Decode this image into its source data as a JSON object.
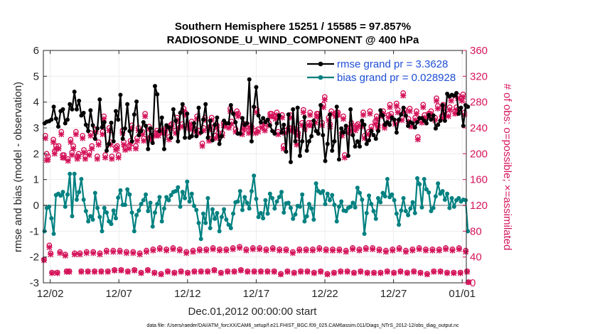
{
  "chart_data": {
    "type": "line",
    "title": "Southern Hemisphere 15251 / 15585 = 97.857%",
    "subtitle": "RADIOSONDE_U_WIND_COMPONENT @ 400 hPa",
    "xlabel": "Dec.01,2012 00:00:00 start",
    "ylabel": "rmse and bias (model - observation)",
    "y2label": "# of obs: o=possible; ×=assimilated",
    "xlim": [
      0.5,
      31.3
    ],
    "ylim": [
      -3,
      6
    ],
    "y2lim": [
      0,
      360
    ],
    "xticks": [
      1,
      6,
      11,
      16,
      21,
      26,
      31
    ],
    "xticklabels": [
      "12/02",
      "12/07",
      "12/12",
      "12/17",
      "12/22",
      "12/27",
      "01/01"
    ],
    "yticks": [
      -3,
      -2,
      -1,
      0,
      1,
      2,
      3,
      4,
      5,
      6
    ],
    "y2ticks": [
      0,
      40,
      80,
      120,
      160,
      200,
      240,
      280,
      320,
      360
    ],
    "grid": true,
    "legend_position": "top-right",
    "colors": {
      "rmse": "#000000",
      "bias": "#008080",
      "obs": "#d4145a",
      "zero": "#b3b3b3",
      "legend_text": "#1f4fd6",
      "grid": "#ececec"
    },
    "series": [
      {
        "name": "rmse grand pr = 3.3628",
        "axis": "left",
        "values": [
          3.18,
          3.24,
          3.26,
          3.32,
          3.82,
          3.36,
          3.05,
          3.65,
          3.72,
          3.18,
          3.32,
          3.92,
          3.72,
          4.4,
          3.72,
          4.05,
          3.48,
          3.58,
          3.12,
          2.88,
          3.68,
          3.1,
          2.58,
          2.98,
          4.1,
          3.02,
          3.22,
          2.12,
          2.38,
          3.2,
          2.48,
          3.65,
          3.32,
          4.28,
          2.58,
          2.98,
          3.92,
          2.88,
          2.48,
          3.52,
          4.02,
          2.72,
          2.88,
          3.22,
          3.08,
          2.18,
          2.98,
          2.42,
          4.62,
          4.3,
          2.88,
          3.4,
          2.18,
          3.1,
          3.02,
          2.62,
          3.72,
          3.28,
          2.48,
          3.58,
          3.92,
          2.62,
          3.55,
          2.62,
          2.68,
          3.18,
          2.68,
          3.78,
          2.82,
          3.32,
          3.92,
          2.62,
          3.28,
          2.52,
          3.12,
          3.4,
          2.38,
          2.68,
          3.28,
          3.18,
          3.18,
          3.88,
          3.55,
          3.22,
          2.78,
          2.78,
          3.38,
          3.12,
          3.18,
          4.88,
          2.48,
          3.82,
          4.58,
          3.48,
          3.22,
          3.38,
          3.22,
          3.32,
          3.1,
          2.88,
          2.78,
          3.18,
          3.48,
          2.82,
          3.12,
          2.08,
          3.52,
          1.68,
          3.72,
          2.48,
          3.78,
          1.92,
          2.48,
          3.42,
          2.12,
          2.48,
          2.68,
          3.28,
          2.88,
          2.78,
          3.88,
          2.72,
          1.72,
          2.38,
          3.52,
          2.12,
          2.48,
          3.82,
          1.78,
          2.98,
          2.82,
          3.08,
          1.92,
          3.72,
          2.72,
          2.28,
          2.48,
          2.28,
          3.28,
          3.12,
          2.38,
          2.52,
          2.88,
          2.72,
          2.58,
          2.88,
          3.68,
          3.48,
          3.12,
          3.22,
          3.12,
          3.4,
          3.32,
          2.82,
          3.32,
          3.52,
          3.78,
          3.48,
          3.08,
          3.22,
          3.18,
          3.02,
          3.22,
          3.38,
          3.38,
          3.28,
          3.18,
          3.5,
          3.32,
          3.48,
          2.98,
          3.12,
          3.28,
          3.88,
          3.28,
          4.32,
          4.22,
          4.28,
          4.25,
          4.35,
          3.55,
          3.78,
          3.08,
          3.88,
          3.82
        ]
      },
      {
        "name": "bias grand pr = 0.028928",
        "axis": "left",
        "values": [
          -1.0,
          -0.1,
          -0.05,
          -0.5,
          -1.1,
          0.4,
          0.45,
          0.38,
          0.52,
          -0.05,
          0.42,
          1.22,
          -0.42,
          1.22,
          0.22,
          0.52,
          1.02,
          0.22,
          -0.22,
          -0.62,
          -0.42,
          -0.55,
          0.48,
          -0.1,
          -0.45,
          -1.0,
          -0.1,
          -0.28,
          -0.62,
          -0.72,
          -0.2,
          -0.5,
          0.3,
          0.58,
          0.02,
          0.02,
          0.62,
          0.42,
          -0.28,
          -1.0,
          -0.38,
          -0.2,
          0.05,
          0.2,
          0.42,
          -0.22,
          0.1,
          -0.82,
          -0.28,
          0.05,
          0.32,
          -0.62,
          -0.12,
          0.32,
          0.2,
          0.4,
          0.52,
          0.55,
          0.7,
          -0.05,
          0.52,
          0.28,
          0.92,
          0.15,
          0.45,
          -0.02,
          -0.18,
          -0.68,
          -1.3,
          -0.32,
          -0.68,
          0.28,
          -0.88,
          -0.15,
          -0.52,
          -0.3,
          -1.0,
          -0.45,
          -0.15,
          -0.55,
          -0.75,
          -0.88,
          -0.32,
          0.12,
          0.15,
          0.55,
          -0.18,
          0.32,
          0.1,
          -0.12,
          0.55,
          1.15,
          0.25,
          -0.45,
          -0.3,
          -0.5,
          0.2,
          -0.32,
          0.45,
          0.28,
          -0.12,
          0.15,
          0.32,
          0.52,
          -0.28,
          0.08,
          0.1,
          -0.1,
          -0.52,
          -0.35,
          -0.02,
          -0.05,
          0.42,
          -0.62,
          -0.42,
          0.05,
          -0.12,
          -0.55,
          0.85,
          0.55,
          0.48,
          0.55,
          0.05,
          0.45,
          0.2,
          0.4,
          0.02,
          -0.62,
          -0.05,
          0.15,
          -0.2,
          -0.22,
          -0.1,
          -0.05,
          0.1,
          -0.08,
          0.68,
          0.48,
          0.22,
          -1.1,
          -0.3,
          0.38,
          0.05,
          -0.22,
          -0.52,
          0.28,
          0.12,
          0.48,
          0.35,
          1.02,
          0.32,
          0.42,
          0.2,
          -0.32,
          -0.75,
          -0.2,
          0.28,
          -0.22,
          -0.38,
          -0.12,
          0.12,
          -0.3,
          1.05,
          0.82,
          -0.08,
          1.02,
          0.62,
          0.5,
          -0.22,
          -0.1,
          0.35,
          0.85,
          0.45,
          0.55,
          0.22,
          0.45,
          -0.1,
          0.28,
          -0.05,
          0.2,
          0.28,
          0.15,
          0.22,
          0.2,
          -1.0
        ]
      },
      {
        "name": "obs possible (o)",
        "axis": "right",
        "values": [
          36,
          228,
          200,
          196,
          58,
          46,
          16,
          222,
          204,
          212,
          16,
          212,
          48,
          234,
          198,
          198,
          44,
          18,
          192,
          18,
          222,
          202,
          212,
          46,
          234,
          196,
          200,
          46,
          18,
          228,
          206,
          196,
          48,
          18,
          202,
          232,
          212,
          48,
          18,
          238,
          196,
          218,
          46,
          18,
          234,
          258,
          198,
          50,
          18,
          240,
          218,
          196,
          50,
          20,
          210,
          212,
          198,
          50,
          20,
          236,
          218,
          210,
          48,
          18,
          212,
          220,
          244,
          48,
          20,
          212,
          224,
          240,
          46,
          16,
          234,
          224,
          262,
          50,
          20,
          242,
          226,
          228,
          52,
          16,
          232,
          236,
          232,
          54,
          14,
          236,
          238,
          236,
          52,
          18,
          226,
          244,
          246,
          54,
          16,
          236,
          256,
          244,
          52,
          18,
          246,
          270,
          264,
          48,
          16,
          244,
          242,
          250,
          50,
          18,
          238,
          258,
          236,
          52,
          18,
          216,
          240,
          256,
          52,
          18,
          224,
          242,
          256,
          54,
          20,
          228,
          244,
          232,
          52,
          16,
          232,
          248,
          246,
          52,
          18,
          244,
          270,
          250,
          54,
          18,
          238,
          266,
          262,
          56,
          20,
          234,
          242,
          246,
          52,
          18,
          236,
          244,
          242,
          54,
          18,
          236,
          268,
          238,
          54,
          18,
          244,
          250,
          240,
          52,
          18,
          248,
          262,
          262,
          54,
          18,
          258,
          264,
          234,
          52,
          14,
          260,
          212,
          236,
          52,
          18,
          240,
          260,
          240,
          48,
          16,
          238,
          218,
          232,
          52,
          18,
          248,
          268,
          242,
          52,
          18,
          248,
          264,
          248,
          52,
          16,
          252,
          262,
          262,
          54,
          18,
          248,
          276,
          288,
          52,
          14,
          256,
          246,
          266,
          52,
          16,
          262,
          264,
          264,
          52,
          18,
          232,
          258,
          198,
          50,
          18,
          236,
          240,
          248,
          54,
          16,
          240,
          244,
          246,
          52,
          18,
          246,
          264,
          228,
          54,
          16,
          234,
          266,
          242,
          54,
          16,
          250,
          258,
          244,
          52,
          16,
          262,
          266,
          244,
          50,
          18,
          260,
          276,
          262,
          52,
          16,
          250,
          278,
          268,
          54,
          18,
          256,
          294,
          268,
          50,
          16,
          254,
          270,
          246,
          52,
          18,
          256,
          266,
          226,
          54,
          16,
          252,
          276,
          260,
          52,
          14,
          262,
          262,
          266,
          52,
          18,
          256,
          286,
          274,
          52,
          18,
          258,
          276,
          264,
          54,
          16,
          262,
          272,
          286,
          52,
          16,
          266,
          272,
          290,
          54,
          16,
          286,
          292,
          264,
          50,
          18,
          1
        ]
      },
      {
        "name": "obs assimilated (×)",
        "axis": "right",
        "values": [
          35,
          224,
          190,
          191,
          55,
          44,
          15,
          218,
          200,
          208,
          15,
          208,
          46,
          230,
          194,
          194,
          42,
          17,
          189,
          17,
          218,
          198,
          208,
          44,
          230,
          192,
          196,
          44,
          17,
          224,
          202,
          192,
          46,
          17,
          198,
          228,
          208,
          46,
          17,
          234,
          192,
          214,
          44,
          17,
          230,
          254,
          194,
          48,
          17,
          236,
          214,
          192,
          48,
          19,
          206,
          208,
          194,
          48,
          19,
          232,
          214,
          206,
          46,
          17,
          208,
          216,
          240,
          46,
          19,
          208,
          220,
          236,
          44,
          15,
          230,
          220,
          258,
          48,
          19,
          238,
          222,
          224,
          50,
          15,
          228,
          232,
          228,
          52,
          13,
          232,
          234,
          232,
          50,
          17,
          222,
          240,
          242,
          52,
          15,
          232,
          252,
          240,
          50,
          17,
          242,
          266,
          260,
          46,
          15,
          240,
          238,
          246,
          48,
          17,
          234,
          254,
          232,
          50,
          17,
          212,
          236,
          252,
          50,
          17,
          220,
          238,
          252,
          52,
          19,
          224,
          240,
          228,
          50,
          15,
          228,
          244,
          242,
          50,
          17,
          240,
          266,
          246,
          52,
          17,
          234,
          262,
          258,
          54,
          19,
          230,
          238,
          242,
          50,
          17,
          232,
          240,
          238,
          52,
          17,
          232,
          264,
          234,
          52,
          17,
          240,
          246,
          236,
          50,
          17,
          244,
          258,
          258,
          52,
          17,
          254,
          260,
          230,
          50,
          13,
          256,
          208,
          232,
          50,
          17,
          236,
          256,
          236,
          46,
          15,
          234,
          214,
          228,
          50,
          17,
          244,
          264,
          238,
          50,
          17,
          244,
          260,
          244,
          50,
          15,
          248,
          258,
          258,
          52,
          17,
          244,
          272,
          284,
          50,
          13,
          252,
          242,
          262,
          50,
          15,
          258,
          260,
          260,
          50,
          17,
          228,
          254,
          194,
          48,
          17,
          232,
          236,
          244,
          52,
          15,
          236,
          240,
          242,
          50,
          17,
          242,
          260,
          224,
          52,
          15,
          230,
          262,
          238,
          52,
          15,
          246,
          254,
          240,
          50,
          15,
          258,
          262,
          240,
          48,
          17,
          256,
          272,
          258,
          50,
          15,
          246,
          274,
          264,
          52,
          17,
          252,
          290,
          264,
          48,
          15,
          250,
          266,
          242,
          50,
          17,
          252,
          262,
          222,
          52,
          15,
          248,
          272,
          256,
          50,
          13,
          258,
          258,
          262,
          50,
          17,
          252,
          282,
          270,
          50,
          17,
          254,
          272,
          260,
          52,
          15,
          258,
          268,
          282,
          50,
          15,
          262,
          268,
          286,
          52,
          15,
          282,
          288,
          260,
          48,
          17,
          1
        ]
      }
    ],
    "footnote": "data file: /Users/raeder/DAI/ATM_forcXX/CAM6_setup/f.e21.FHIST_BGC.f09_025.CAM6assim.011/Diags_NTrS_2012-12/obs_diag_output.nc"
  }
}
